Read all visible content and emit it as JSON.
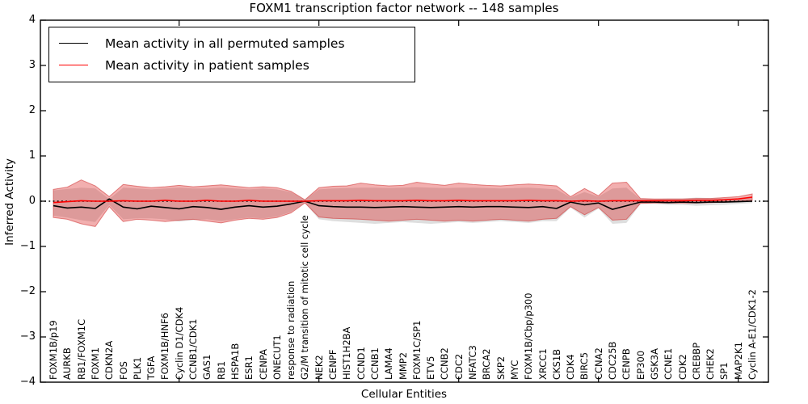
{
  "figure": {
    "title": "FOXM1 transcription factor network -- 148 samples",
    "background": "#ffffff"
  },
  "legend": {
    "items": [
      {
        "label": "Mean activity in all permuted samples",
        "color": "#000000"
      },
      {
        "label": "Mean activity in patient samples",
        "color": "#ff0000"
      }
    ]
  },
  "chart_data": {
    "type": "line",
    "title": "FOXM1 transcription factor network -- 148 samples",
    "xlabel": "Cellular Entities",
    "ylabel": "Inferred Activity",
    "ylim": [
      -4,
      4
    ],
    "grid": false,
    "legend_position": "upper left",
    "y_ticks": [
      {
        "value": 4,
        "label": "4"
      },
      {
        "value": 3,
        "label": "3"
      },
      {
        "value": 2,
        "label": "2"
      },
      {
        "value": 1,
        "label": "1"
      },
      {
        "value": 0,
        "label": "0"
      },
      {
        "value": -1,
        "label": "−1"
      },
      {
        "value": -2,
        "label": "−2"
      },
      {
        "value": -3,
        "label": "−3"
      },
      {
        "value": -4,
        "label": "−4"
      }
    ],
    "x_major_tick_indices": [
      9,
      19,
      29,
      39,
      49
    ],
    "zero_line": {
      "value": 0,
      "style": "dotted",
      "color": "#000000"
    },
    "categories": [
      "FOXM1B/p19",
      "AURKB",
      "RB1/FOXM1C",
      "FOXM1",
      "CDKN2A",
      "FOS",
      "PLK1",
      "TGFA",
      "FOXM1B/HNF6",
      "Cyclin D1/CDK4",
      "CCNB1/CDK1",
      "GAS1",
      "RB1",
      "HSPA1B",
      "ESR1",
      "CENPA",
      "ONECUT1",
      "response to radiation",
      "G2/M transition of mitotic cell cycle",
      "NEK2",
      "CENPF",
      "HIST1H2BA",
      "CCND1",
      "CCNB1",
      "LAMA4",
      "MMP2",
      "FOXM1C/SP1",
      "ETV5",
      "CCNB2",
      "CDC2",
      "NFATC3",
      "BRCA2",
      "SKP2",
      "MYC",
      "FOXM1B/Cbp/p300",
      "XRCC1",
      "CKS1B",
      "CDK4",
      "BIRC5",
      "CCNA2",
      "CDC25B",
      "CENPB",
      "EP300",
      "GSK3A",
      "CCNE1",
      "CDK2",
      "CREBBP",
      "CHEK2",
      "SP1",
      "MAP2K1",
      "Cyclin A-E1/CDK1-2"
    ],
    "series": [
      {
        "name": "Mean activity in all permuted samples",
        "role": "permuted_mean",
        "color": "#000000",
        "values": [
          -0.1,
          -0.15,
          -0.13,
          -0.16,
          0.05,
          -0.13,
          -0.17,
          -0.11,
          -0.14,
          -0.17,
          -0.12,
          -0.14,
          -0.18,
          -0.13,
          -0.1,
          -0.13,
          -0.11,
          -0.06,
          0.0,
          -0.1,
          -0.12,
          -0.13,
          -0.13,
          -0.14,
          -0.13,
          -0.12,
          -0.13,
          -0.14,
          -0.13,
          -0.12,
          -0.13,
          -0.12,
          -0.12,
          -0.13,
          -0.14,
          -0.12,
          -0.16,
          -0.02,
          -0.08,
          -0.04,
          -0.18,
          -0.1,
          -0.02,
          -0.02,
          -0.03,
          -0.02,
          -0.03,
          -0.02,
          -0.02,
          -0.01,
          0.0
        ]
      },
      {
        "name": "Mean activity in patient samples",
        "role": "patient_mean",
        "color": "#ff0000",
        "values": [
          -0.03,
          -0.01,
          0.01,
          0.0,
          0.0,
          0.01,
          0.0,
          0.0,
          0.02,
          0.0,
          0.0,
          0.02,
          0.0,
          0.0,
          0.02,
          0.0,
          0.0,
          0.0,
          0.0,
          0.01,
          0.01,
          0.01,
          0.02,
          0.01,
          0.01,
          0.01,
          0.02,
          0.01,
          0.01,
          0.02,
          0.01,
          0.01,
          0.01,
          0.01,
          0.02,
          0.01,
          0.01,
          0.0,
          0.01,
          0.0,
          0.01,
          0.01,
          0.01,
          0.01,
          0.01,
          0.01,
          0.02,
          0.02,
          0.03,
          0.05,
          0.09
        ]
      }
    ],
    "bands": [
      {
        "name": "permuted-samples-band",
        "fill": "rgba(160,160,160,0.35)",
        "stroke": "none",
        "upper": [
          0.24,
          0.27,
          0.3,
          0.28,
          0.05,
          0.3,
          0.28,
          0.26,
          0.28,
          0.3,
          0.28,
          0.28,
          0.3,
          0.28,
          0.26,
          0.28,
          0.26,
          0.2,
          0.03,
          0.26,
          0.28,
          0.29,
          0.3,
          0.3,
          0.29,
          0.3,
          0.31,
          0.3,
          0.29,
          0.3,
          0.3,
          0.29,
          0.28,
          0.29,
          0.3,
          0.28,
          0.26,
          0.08,
          0.2,
          0.1,
          0.28,
          0.3,
          0.05,
          0.05,
          0.06,
          0.06,
          0.08,
          0.07,
          0.06,
          0.06,
          0.08
        ],
        "lower": [
          -0.32,
          -0.36,
          -0.42,
          -0.46,
          -0.08,
          -0.4,
          -0.38,
          -0.38,
          -0.4,
          -0.45,
          -0.42,
          -0.4,
          -0.44,
          -0.4,
          -0.36,
          -0.38,
          -0.34,
          -0.24,
          -0.04,
          -0.4,
          -0.44,
          -0.46,
          -0.48,
          -0.5,
          -0.48,
          -0.46,
          -0.48,
          -0.5,
          -0.48,
          -0.46,
          -0.48,
          -0.46,
          -0.44,
          -0.46,
          -0.48,
          -0.44,
          -0.44,
          -0.14,
          -0.36,
          -0.16,
          -0.5,
          -0.48,
          -0.06,
          -0.06,
          -0.08,
          -0.08,
          -0.1,
          -0.09,
          -0.08,
          -0.06,
          -0.04
        ]
      },
      {
        "name": "patient-samples-band",
        "fill": "rgba(222,45,45,0.38)",
        "stroke": "rgba(205,45,45,0.55)",
        "upper": [
          0.26,
          0.31,
          0.47,
          0.34,
          0.1,
          0.37,
          0.33,
          0.3,
          0.32,
          0.35,
          0.32,
          0.34,
          0.36,
          0.33,
          0.3,
          0.32,
          0.3,
          0.22,
          0.03,
          0.3,
          0.33,
          0.34,
          0.4,
          0.36,
          0.34,
          0.35,
          0.42,
          0.38,
          0.35,
          0.4,
          0.37,
          0.35,
          0.34,
          0.36,
          0.38,
          0.36,
          0.34,
          0.1,
          0.28,
          0.12,
          0.4,
          0.42,
          0.06,
          0.05,
          0.05,
          0.05,
          0.06,
          0.06,
          0.08,
          0.1,
          0.16
        ],
        "lower": [
          -0.36,
          -0.4,
          -0.5,
          -0.56,
          -0.12,
          -0.45,
          -0.4,
          -0.42,
          -0.45,
          -0.42,
          -0.4,
          -0.44,
          -0.48,
          -0.42,
          -0.38,
          -0.4,
          -0.36,
          -0.26,
          -0.04,
          -0.35,
          -0.38,
          -0.39,
          -0.4,
          -0.42,
          -0.44,
          -0.42,
          -0.4,
          -0.42,
          -0.44,
          -0.42,
          -0.44,
          -0.42,
          -0.4,
          -0.42,
          -0.44,
          -0.4,
          -0.38,
          -0.12,
          -0.3,
          -0.14,
          -0.42,
          -0.4,
          -0.05,
          -0.04,
          -0.04,
          -0.04,
          -0.04,
          -0.03,
          -0.02,
          0.0,
          0.02
        ]
      }
    ]
  }
}
